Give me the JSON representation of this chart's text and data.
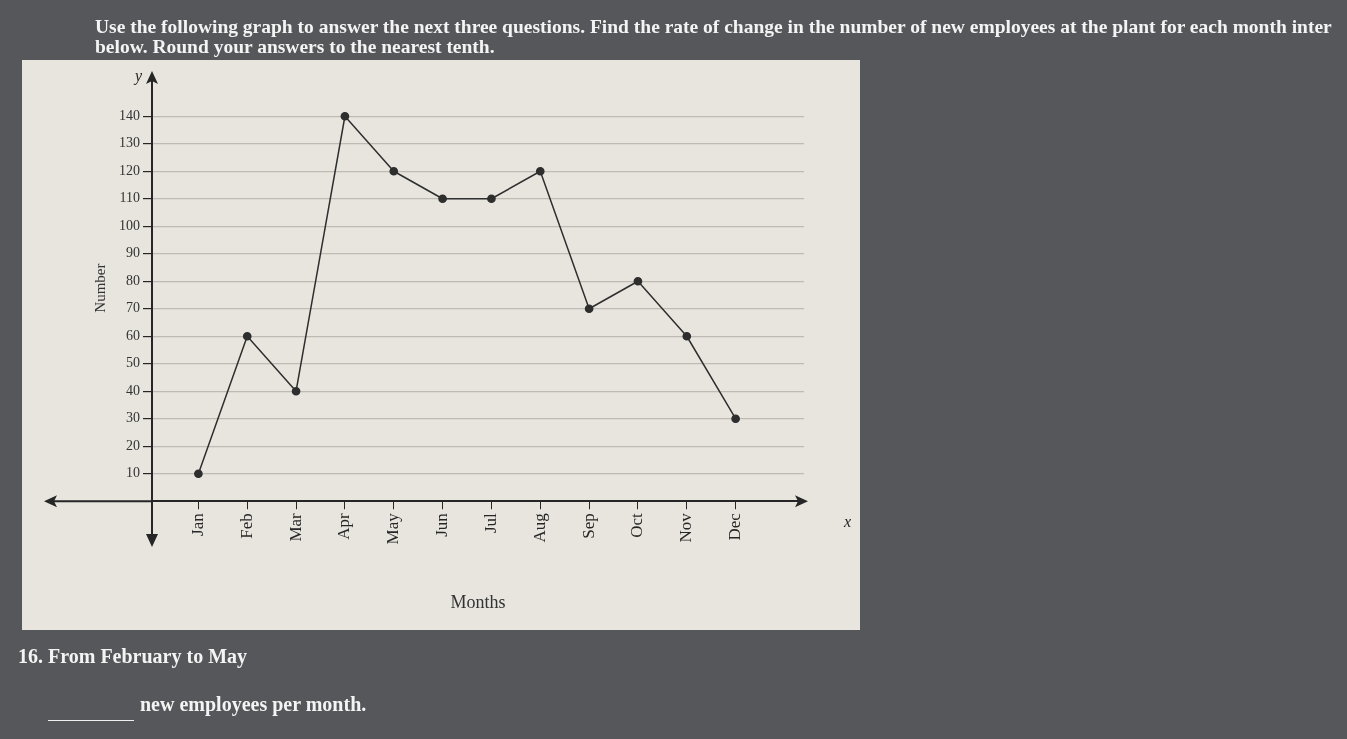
{
  "chart_data": {
    "type": "line",
    "title": "Use the following graph to answer the next three questions. Find the rate of change in the number of new employees at the plant for each month inter\nbelow. Round your answers to the nearest tenth.",
    "xlabel": "Months",
    "ylabel": "Number",
    "categories": [
      "Jan",
      "Feb",
      "Mar",
      "Apr",
      "May",
      "Jun",
      "Jul",
      "Aug",
      "Sep",
      "Oct",
      "Nov",
      "Dec"
    ],
    "values": [
      10,
      60,
      40,
      140,
      120,
      110,
      110,
      120,
      70,
      80,
      60,
      30
    ],
    "color": "#2e2e2e",
    "ylim": [
      0,
      155
    ],
    "yticks": [
      10,
      20,
      30,
      40,
      50,
      60,
      70,
      80,
      90,
      100,
      110,
      120,
      130,
      140
    ],
    "grid": "y",
    "legend": false,
    "marker": "circle",
    "line_style": "solid",
    "annotations": [
      "y",
      "x",
      "16. From February to May",
      "new employees per month."
    ]
  }
}
